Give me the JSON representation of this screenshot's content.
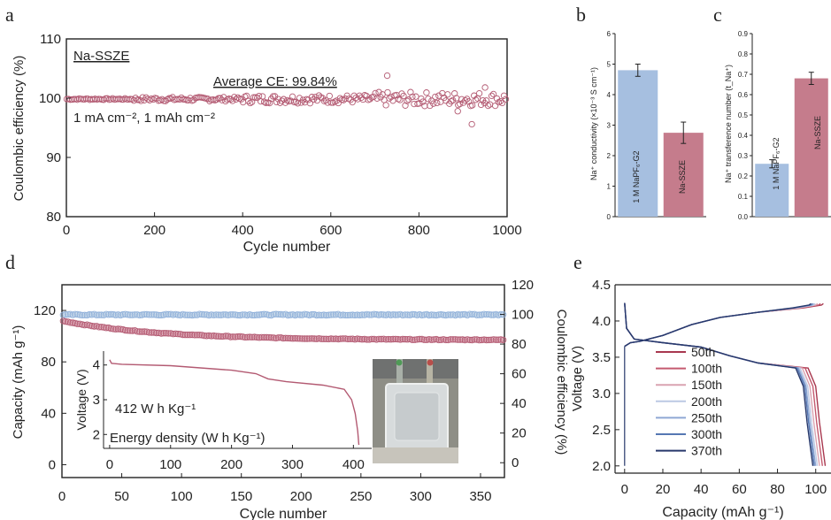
{
  "colors": {
    "red": "#b35a72",
    "red_fill": "#c9798c",
    "blue": "#8fb0da",
    "blue_marker": "#a9c4de",
    "bar_blue": "#a6bfe0",
    "bar_red": "#c57c8c",
    "axis": "#222222"
  },
  "chart_data": [
    {
      "panel": "a",
      "type": "scatter",
      "xlabel": "Cycle number",
      "ylabel": "Coulombic efficiency (%)",
      "xlim": [
        0,
        1000
      ],
      "ylim": [
        80,
        110
      ],
      "xticks": [
        0,
        200,
        400,
        600,
        800,
        1000
      ],
      "yticks": [
        80,
        90,
        100,
        110
      ],
      "annotations": {
        "name": "Na-SSZE",
        "ce": "Average CE: 99.84%",
        "cond": "1 mA cm⁻², 1 mAh cm⁻²"
      },
      "series": [
        {
          "mean": 99.84,
          "outliers": [
            [
              728,
              103.8
            ],
            [
              920,
              95.6
            ],
            [
              888,
              97.8
            ],
            [
              950,
              101.8
            ]
          ]
        }
      ]
    },
    {
      "panel": "b",
      "type": "bar",
      "ylabel": "Na⁺ conductivity (×10⁻³ S cm⁻¹)",
      "ylim": [
        0,
        6
      ],
      "yticks": [
        0,
        1,
        2,
        3,
        4,
        5,
        6
      ],
      "categories": [
        "1 M NaPF₆-G2",
        "Na-SSZE"
      ],
      "values": [
        4.8,
        2.75
      ],
      "errors": [
        0.2,
        0.35
      ]
    },
    {
      "panel": "c",
      "type": "bar",
      "ylabel": "Na⁺ transference number (t_Na⁺)",
      "ylim": [
        0,
        0.9
      ],
      "yticks": [
        0.0,
        0.1,
        0.2,
        0.3,
        0.4,
        0.5,
        0.6,
        0.7,
        0.8,
        0.9
      ],
      "categories": [
        "1 M NaPF₆-G2",
        "Na-SSZE"
      ],
      "values": [
        0.26,
        0.68
      ],
      "errors": [
        0.02,
        0.03
      ]
    },
    {
      "panel": "d",
      "type": "scatter",
      "xlabel": "Cycle number",
      "ylabel": "Capacity (mAh g⁻¹)",
      "ylabel_right": "Coulombic efficiency (%)",
      "xlim": [
        0,
        370
      ],
      "ylim": [
        -10,
        140
      ],
      "ylim_right": [
        -10,
        120
      ],
      "xticks": [
        0,
        50,
        100,
        150,
        200,
        250,
        300,
        350
      ],
      "yticks": [
        0,
        40,
        80,
        120
      ],
      "yticks_right": [
        0,
        20,
        40,
        60,
        80,
        100,
        120
      ],
      "series": [
        {
          "name": "capacity",
          "start": 112,
          "end": 97
        },
        {
          "name": "CE",
          "value": 99.8
        }
      ],
      "inset": {
        "type": "line",
        "xlabel": "Energy density (W h Kg⁻¹)",
        "ylabel": "Voltage (V)",
        "text": "412 W h Kg⁻¹",
        "xlim": [
          -10,
          430
        ],
        "ylim": [
          1.6,
          4.4
        ],
        "xticks": [
          0,
          100,
          200,
          300,
          400
        ],
        "yticks": [
          2,
          3,
          4
        ],
        "points": [
          [
            0,
            4.15
          ],
          [
            3,
            4.05
          ],
          [
            20,
            4.02
          ],
          [
            100,
            3.98
          ],
          [
            200,
            3.85
          ],
          [
            240,
            3.75
          ],
          [
            260,
            3.6
          ],
          [
            290,
            3.52
          ],
          [
            350,
            3.42
          ],
          [
            385,
            3.3
          ],
          [
            397,
            3.0
          ],
          [
            403,
            2.6
          ],
          [
            407,
            2.1
          ],
          [
            409,
            1.7
          ]
        ]
      }
    },
    {
      "panel": "e",
      "type": "line",
      "xlabel": "Capacity (mAh g⁻¹)",
      "ylabel": "Voltage (V)",
      "xlim": [
        -5,
        108
      ],
      "ylim": [
        1.9,
        4.5
      ],
      "xticks": [
        0,
        20,
        40,
        60,
        80,
        100
      ],
      "yticks": [
        2.0,
        2.5,
        3.0,
        3.5,
        4.0,
        4.5
      ],
      "series": [
        {
          "name": "50th",
          "color": "#a8384f",
          "cap": 104
        },
        {
          "name": "100th",
          "color": "#c45a6f",
          "cap": 102.5
        },
        {
          "name": "150th",
          "color": "#d9a3b1",
          "cap": 101
        },
        {
          "name": "200th",
          "color": "#bcc9e4",
          "cap": 99.8
        },
        {
          "name": "250th",
          "color": "#8fa8d4",
          "cap": 99
        },
        {
          "name": "300th",
          "color": "#5577b3",
          "cap": 98.3
        },
        {
          "name": "370th",
          "color": "#27386b",
          "cap": 97.5
        }
      ]
    }
  ]
}
